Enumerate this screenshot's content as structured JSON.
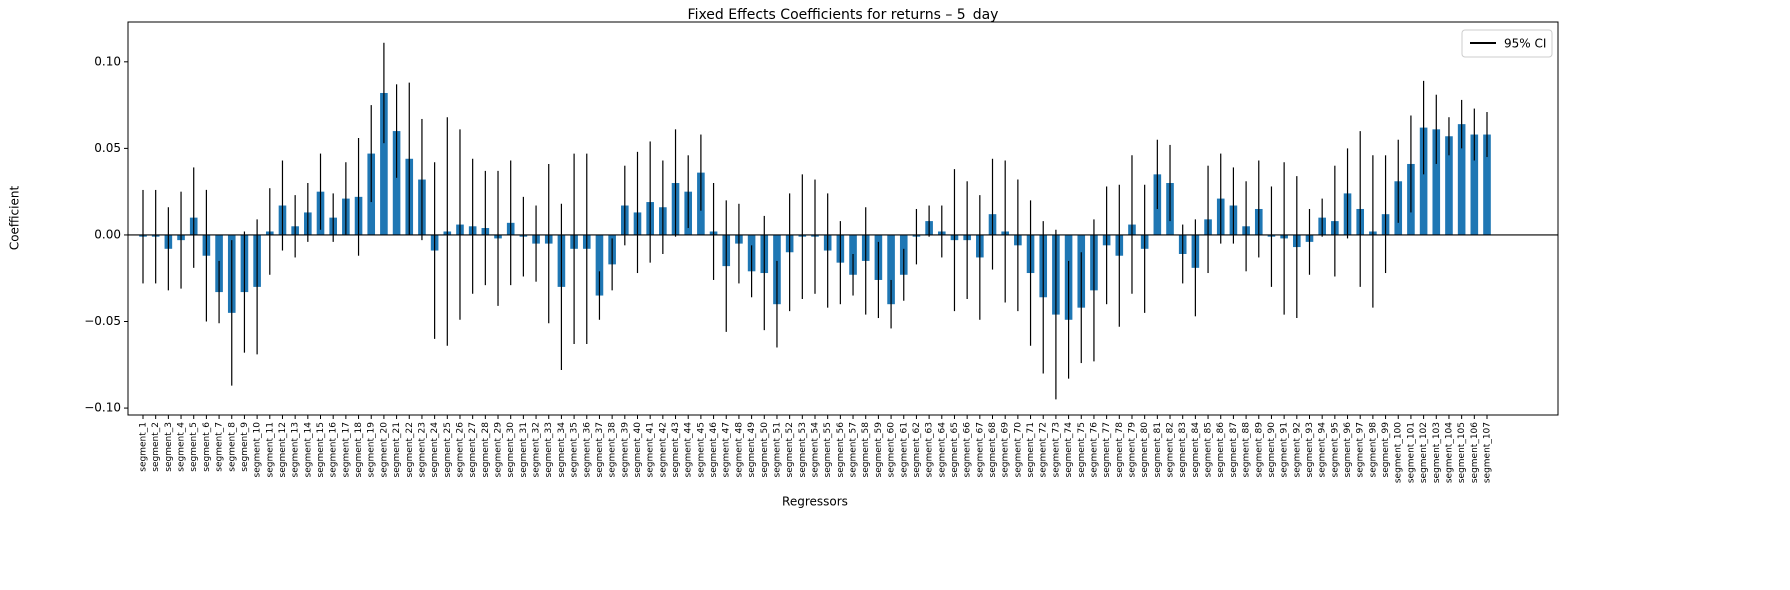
{
  "chart_data": {
    "type": "bar",
    "title": "Fixed Effects Coefficients for returns – 5_day",
    "x_label": "Regressors",
    "y_label": "Coefficient",
    "legend": "95% CI",
    "legend_position": "upper right",
    "color": "#1f77b4",
    "error_color": "#000000",
    "reference_line": 0,
    "categories": [
      "segment_1",
      "segment_2",
      "segment_3",
      "segment_4",
      "segment_5",
      "segment_6",
      "segment_7",
      "segment_8",
      "segment_9",
      "segment_10",
      "segment_11",
      "segment_12",
      "segment_13",
      "segment_14",
      "segment_15",
      "segment_16",
      "segment_17",
      "segment_18",
      "segment_19",
      "segment_20",
      "segment_21",
      "segment_22",
      "segment_23",
      "segment_24",
      "segment_25",
      "segment_26",
      "segment_27",
      "segment_28",
      "segment_29",
      "segment_30",
      "segment_31",
      "segment_32",
      "segment_33",
      "segment_34",
      "segment_35",
      "segment_36",
      "segment_37",
      "segment_38",
      "segment_39",
      "segment_40",
      "segment_41",
      "segment_42",
      "segment_43",
      "segment_44",
      "segment_45",
      "segment_46",
      "segment_47",
      "segment_48",
      "segment_49",
      "segment_50",
      "segment_51",
      "segment_52",
      "segment_53",
      "segment_54",
      "segment_55",
      "segment_56",
      "segment_57",
      "segment_58",
      "segment_59",
      "segment_60",
      "segment_61",
      "segment_62",
      "segment_63",
      "segment_64",
      "segment_65",
      "segment_66",
      "segment_67",
      "segment_68",
      "segment_69",
      "segment_70",
      "segment_71",
      "segment_72",
      "segment_73",
      "segment_74",
      "segment_75",
      "segment_76",
      "segment_77",
      "segment_78",
      "segment_79",
      "segment_80",
      "segment_81",
      "segment_82",
      "segment_83",
      "segment_84",
      "segment_85",
      "segment_86",
      "segment_87",
      "segment_88",
      "segment_89",
      "segment_90",
      "segment_91",
      "segment_92",
      "segment_93",
      "segment_94",
      "segment_95",
      "segment_96",
      "segment_97",
      "segment_98",
      "segment_99",
      "segment_100",
      "segment_101",
      "segment_102",
      "segment_103",
      "segment_104",
      "segment_105",
      "segment_106",
      "segment_107"
    ],
    "values": [
      -0.001,
      -0.001,
      -0.008,
      -0.003,
      0.01,
      -0.012,
      -0.033,
      -0.045,
      -0.033,
      -0.03,
      0.002,
      0.017,
      0.005,
      0.013,
      0.025,
      0.01,
      0.021,
      0.022,
      0.047,
      0.082,
      0.06,
      0.044,
      0.032,
      -0.009,
      0.002,
      0.006,
      0.005,
      0.004,
      -0.002,
      0.007,
      -0.001,
      -0.005,
      -0.005,
      -0.03,
      -0.008,
      -0.008,
      -0.035,
      -0.017,
      0.017,
      0.013,
      0.019,
      0.016,
      0.03,
      0.025,
      0.036,
      0.002,
      -0.018,
      -0.005,
      -0.021,
      -0.022,
      -0.04,
      -0.01,
      -0.001,
      -0.001,
      -0.009,
      -0.016,
      -0.023,
      -0.015,
      -0.026,
      -0.04,
      -0.023,
      -0.001,
      0.008,
      0.002,
      -0.003,
      -0.003,
      -0.013,
      0.012,
      0.002,
      -0.006,
      -0.022,
      -0.036,
      -0.046,
      -0.049,
      -0.042,
      -0.032,
      -0.006,
      -0.012,
      0.006,
      -0.008,
      0.035,
      0.03,
      -0.011,
      -0.019,
      0.009,
      0.021,
      0.017,
      0.005,
      0.015,
      -0.001,
      -0.002,
      -0.007,
      -0.004,
      0.01,
      0.008,
      0.024,
      0.015,
      0.002,
      0.012,
      0.031,
      0.041,
      0.062,
      0.061,
      0.057,
      0.064,
      0.058,
      0.058
    ],
    "errors": [
      0.027,
      0.027,
      0.024,
      0.028,
      0.029,
      0.038,
      0.018,
      0.042,
      0.035,
      0.039,
      0.025,
      0.026,
      0.018,
      0.017,
      0.022,
      0.014,
      0.021,
      0.034,
      0.028,
      0.029,
      0.027,
      0.044,
      0.035,
      0.051,
      0.066,
      0.055,
      0.039,
      0.033,
      0.039,
      0.036,
      0.023,
      0.022,
      0.046,
      0.048,
      0.055,
      0.055,
      0.014,
      0.015,
      0.023,
      0.035,
      0.035,
      0.027,
      0.031,
      0.021,
      0.022,
      0.028,
      0.038,
      0.023,
      0.015,
      0.033,
      0.025,
      0.034,
      0.036,
      0.033,
      0.033,
      0.024,
      0.012,
      0.031,
      0.022,
      0.014,
      0.015,
      0.016,
      0.009,
      0.015,
      0.041,
      0.034,
      0.036,
      0.032,
      0.041,
      0.038,
      0.042,
      0.044,
      0.049,
      0.034,
      0.032,
      0.041,
      0.034,
      0.041,
      0.04,
      0.037,
      0.02,
      0.022,
      0.017,
      0.028,
      0.031,
      0.026,
      0.022,
      0.026,
      0.028,
      0.029,
      0.044,
      0.041,
      0.019,
      0.011,
      0.032,
      0.026,
      0.045,
      0.044,
      0.034,
      0.024,
      0.028,
      0.027,
      0.02,
      0.011,
      0.014,
      0.015,
      0.013
    ],
    "ylim": [
      -0.104,
      0.123
    ],
    "yticks": [
      {
        "value": -0.1,
        "label": "−0.10"
      },
      {
        "value": -0.05,
        "label": "−0.05"
      },
      {
        "value": 0,
        "label": "0.00"
      },
      {
        "value": 0.05,
        "label": "0.05"
      },
      {
        "value": 0.1,
        "label": "0.10"
      }
    ]
  }
}
